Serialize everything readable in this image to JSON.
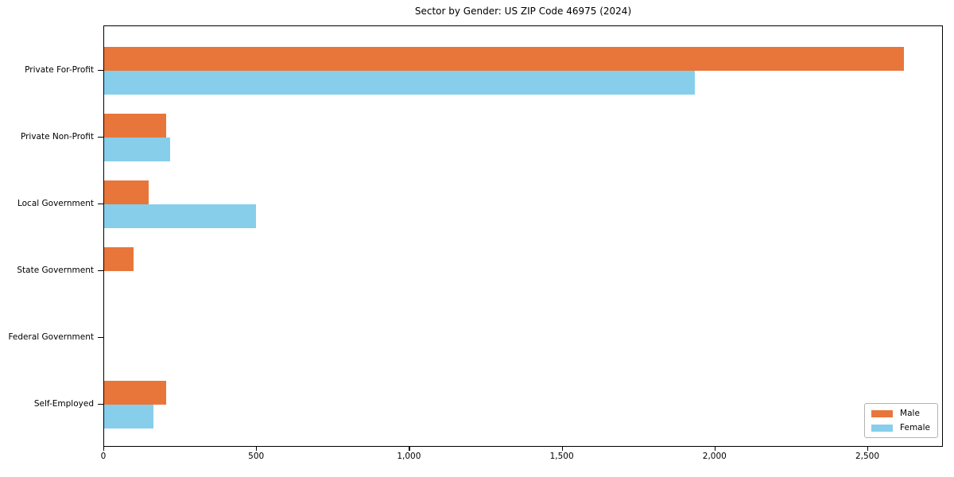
{
  "title": "Sector by Gender: US ZIP Code 46975 (2024)",
  "chart_data": {
    "type": "bar",
    "orientation": "horizontal",
    "title": "Sector by Gender: US ZIP Code 46975 (2024)",
    "categories": [
      "Private For-Profit",
      "Private Non-Profit",
      "Local Government",
      "State Government",
      "Federal Government",
      "Self-Employed"
    ],
    "series": [
      {
        "name": "Male",
        "color": "#E8763B",
        "values": [
          2616,
          202,
          146,
          97,
          0,
          202
        ]
      },
      {
        "name": "Female",
        "color": "#87CEEB",
        "values": [
          1933,
          217,
          497,
          0,
          0,
          161
        ]
      }
    ],
    "xlabel": "",
    "ylabel": "",
    "xlim": [
      0,
      2747
    ],
    "xticks": [
      0,
      500,
      1000,
      1500,
      2000,
      2500
    ],
    "xtick_labels": [
      "0",
      "500",
      "1,000",
      "1,500",
      "2,000",
      "2,500"
    ],
    "grid": false,
    "legend": {
      "position": "lower right",
      "entries": [
        "Male",
        "Female"
      ]
    },
    "background": "#ffffff"
  }
}
